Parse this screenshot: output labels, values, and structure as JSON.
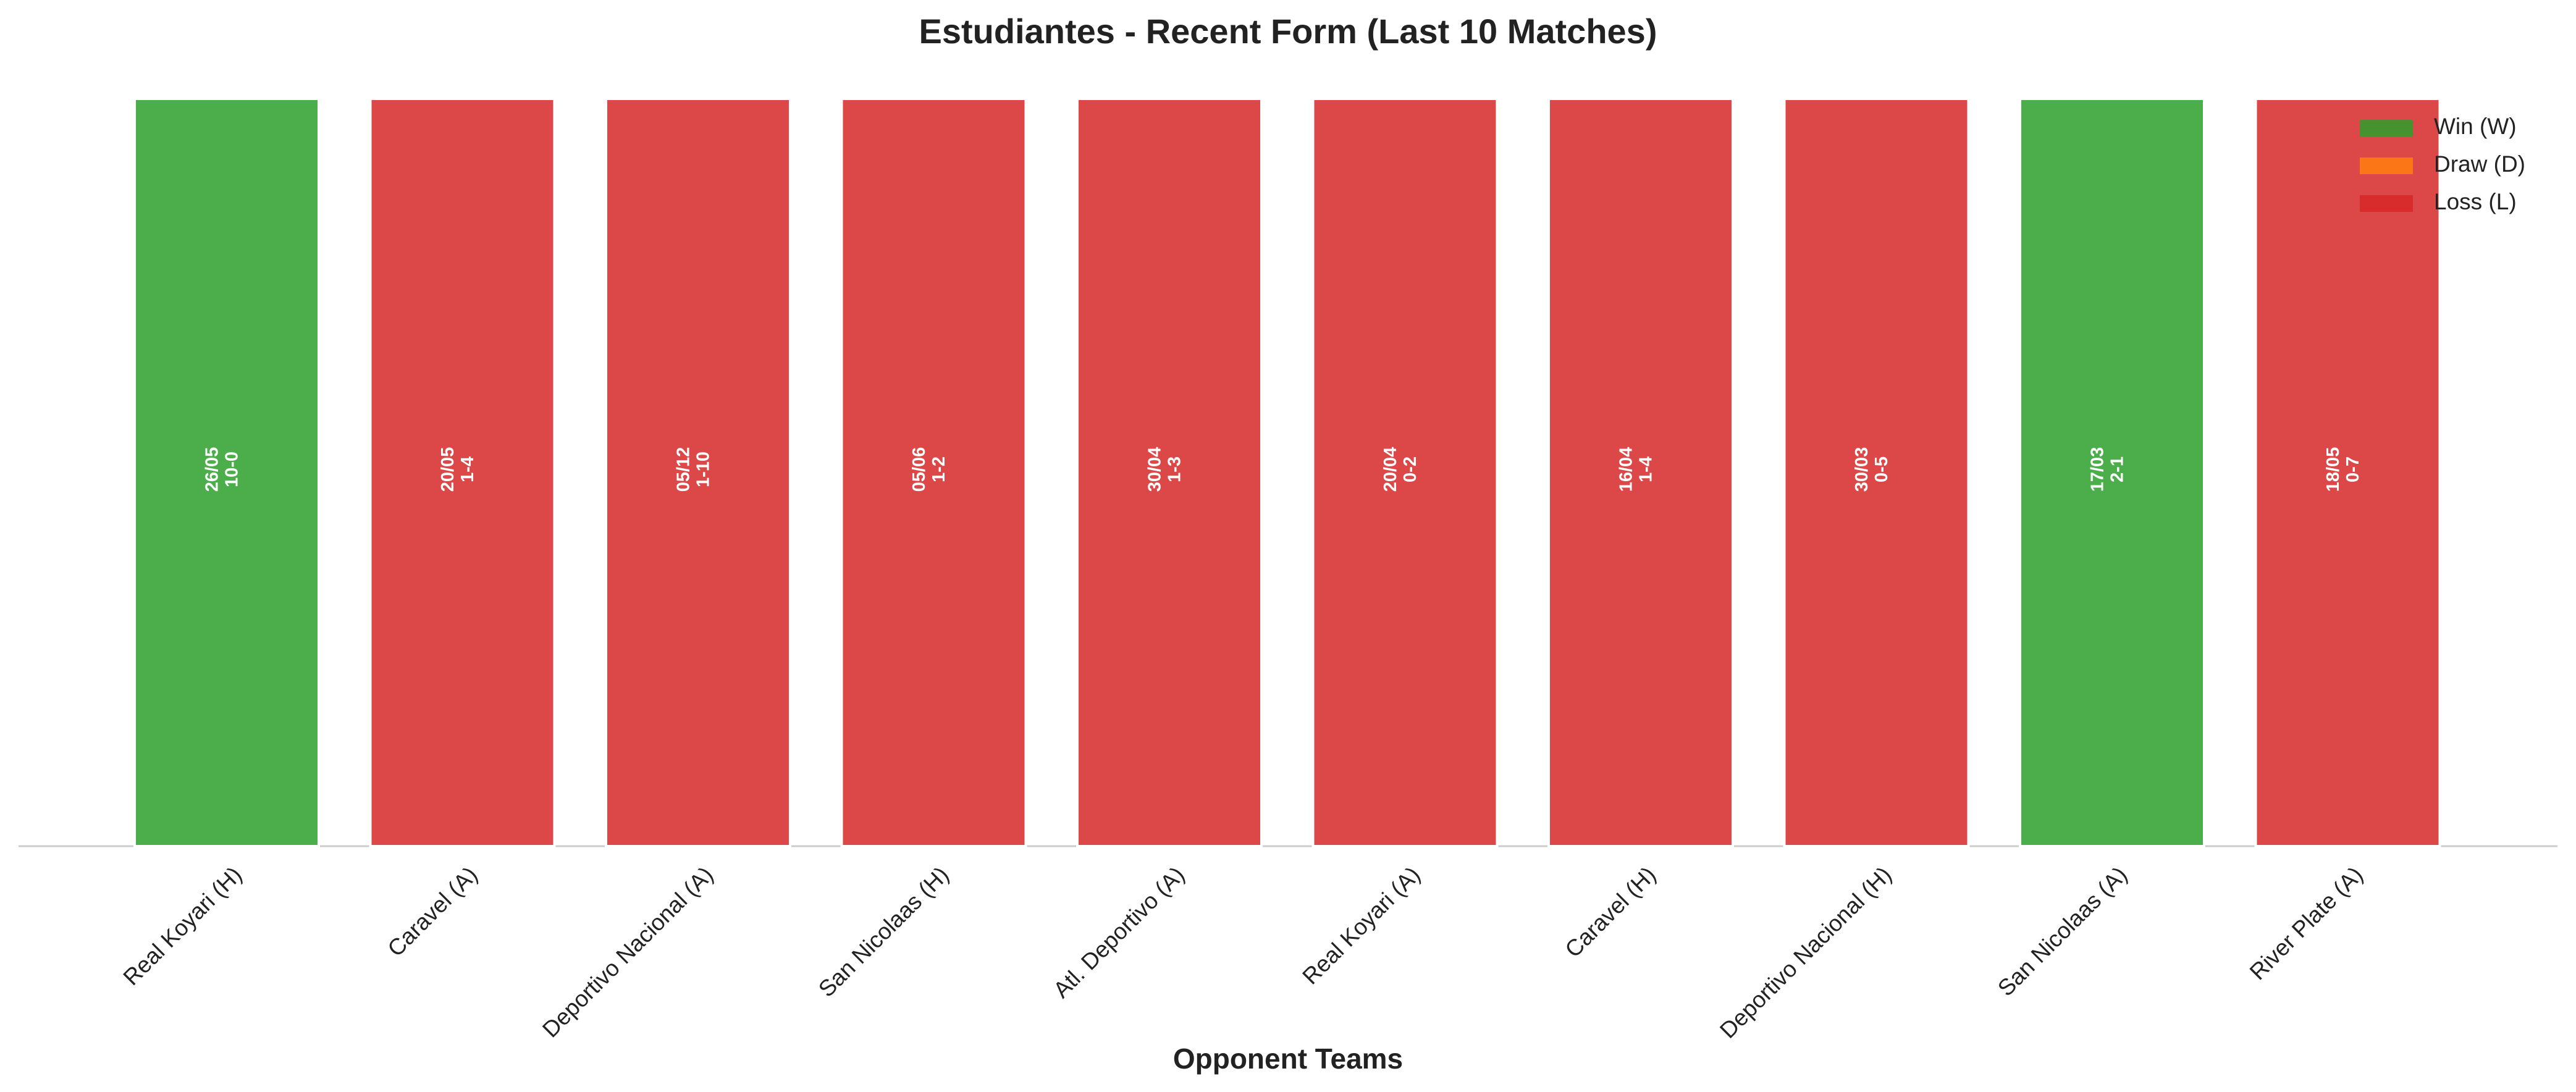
{
  "chart_data": {
    "type": "bar",
    "stacked": true,
    "title": "Estudiantes - Recent Form (Last 10 Matches)",
    "x_label": "Opponent Teams",
    "categories": [
      "Real Koyari (H)",
      "Caravel (A)",
      "Deportivo Nacional (A)",
      "San Nicolaas (H)",
      "Atl. Deportivo (A)",
      "Real Koyari (A)",
      "Caravel (H)",
      "Deportivo Nacional (H)",
      "San Nicolaas (A)",
      "River Plate (A)"
    ],
    "dates": [
      "26/05",
      "20/05",
      "05/12",
      "05/06",
      "30/04",
      "20/04",
      "16/04",
      "30/03",
      "17/03",
      "18/05"
    ],
    "scores": [
      "10-0",
      "1-4",
      "1-10",
      "1-2",
      "1-3",
      "0-2",
      "1-4",
      "0-5",
      "2-1",
      "0-7"
    ],
    "series": [
      {
        "name": "Win (W)",
        "color": "#2ca02c",
        "values": [
          1,
          0,
          0,
          0,
          0,
          0,
          0,
          0,
          1,
          0
        ]
      },
      {
        "name": "Draw (D)",
        "color": "#ff7f0e",
        "values": [
          0,
          0,
          0,
          0,
          0,
          0,
          0,
          0,
          0,
          0
        ]
      },
      {
        "name": "Loss (L)",
        "color": "#d62728",
        "values": [
          0,
          1,
          1,
          1,
          1,
          1,
          1,
          1,
          0,
          1
        ]
      }
    ],
    "ylim": [
      0,
      1
    ],
    "legend": "upper right"
  }
}
